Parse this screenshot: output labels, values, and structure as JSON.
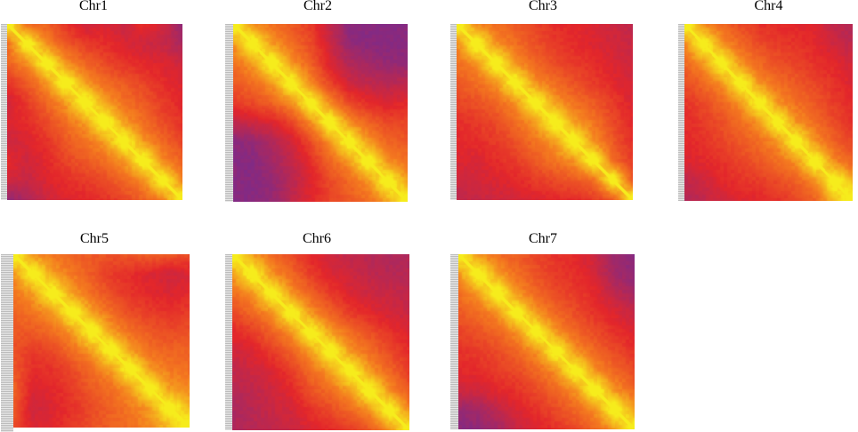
{
  "palette": {
    "low": "#7a2a8c",
    "mid_low": "#e3262b",
    "mid": "#f47a1f",
    "high": "#f6ec1c"
  },
  "chart_data": [
    {
      "type": "heatmap",
      "title": "Chr1",
      "matrix": [
        [
          1.0,
          0.62,
          0.58,
          0.42,
          0.3,
          0.35,
          0.28,
          0.4,
          0.32,
          0.1
        ],
        [
          0.62,
          1.0,
          0.7,
          0.55,
          0.45,
          0.4,
          0.35,
          0.3,
          0.28,
          0.18
        ],
        [
          0.58,
          0.7,
          1.0,
          0.72,
          0.6,
          0.5,
          0.42,
          0.38,
          0.35,
          0.3
        ],
        [
          0.42,
          0.55,
          0.72,
          1.0,
          0.74,
          0.62,
          0.55,
          0.48,
          0.4,
          0.35
        ],
        [
          0.3,
          0.45,
          0.6,
          0.74,
          1.0,
          0.75,
          0.63,
          0.55,
          0.45,
          0.38
        ],
        [
          0.35,
          0.4,
          0.5,
          0.62,
          0.75,
          1.0,
          0.74,
          0.62,
          0.5,
          0.42
        ],
        [
          0.28,
          0.35,
          0.42,
          0.55,
          0.63,
          0.74,
          1.0,
          0.73,
          0.6,
          0.48
        ],
        [
          0.4,
          0.3,
          0.38,
          0.48,
          0.55,
          0.62,
          0.73,
          1.0,
          0.7,
          0.58
        ],
        [
          0.32,
          0.28,
          0.35,
          0.4,
          0.45,
          0.5,
          0.6,
          0.7,
          1.0,
          0.68
        ],
        [
          0.1,
          0.18,
          0.3,
          0.35,
          0.38,
          0.42,
          0.48,
          0.58,
          0.68,
          1.0
        ]
      ]
    },
    {
      "type": "heatmap",
      "title": "Chr2",
      "matrix": [
        [
          1.0,
          0.72,
          0.62,
          0.55,
          0.45,
          0.25,
          0.05,
          0.05,
          0.05,
          0.05
        ],
        [
          0.72,
          1.0,
          0.74,
          0.62,
          0.5,
          0.3,
          0.1,
          0.05,
          0.05,
          0.05
        ],
        [
          0.62,
          0.74,
          1.0,
          0.73,
          0.58,
          0.35,
          0.2,
          0.15,
          0.1,
          0.1
        ],
        [
          0.55,
          0.62,
          0.73,
          1.0,
          0.7,
          0.48,
          0.3,
          0.25,
          0.22,
          0.25
        ],
        [
          0.45,
          0.5,
          0.58,
          0.7,
          1.0,
          0.7,
          0.5,
          0.4,
          0.35,
          0.38
        ],
        [
          0.25,
          0.3,
          0.35,
          0.48,
          0.7,
          1.0,
          0.72,
          0.58,
          0.5,
          0.48
        ],
        [
          0.05,
          0.1,
          0.2,
          0.3,
          0.5,
          0.72,
          1.0,
          0.73,
          0.6,
          0.55
        ],
        [
          0.05,
          0.05,
          0.15,
          0.25,
          0.4,
          0.58,
          0.73,
          1.0,
          0.72,
          0.62
        ],
        [
          0.05,
          0.05,
          0.1,
          0.22,
          0.35,
          0.5,
          0.6,
          0.72,
          1.0,
          0.75
        ],
        [
          0.05,
          0.05,
          0.1,
          0.25,
          0.38,
          0.48,
          0.55,
          0.62,
          0.75,
          1.0
        ]
      ]
    },
    {
      "type": "heatmap",
      "title": "Chr3",
      "matrix": [
        [
          1.0,
          0.7,
          0.62,
          0.55,
          0.48,
          0.4,
          0.38,
          0.35,
          0.3,
          0.25
        ],
        [
          0.7,
          1.0,
          0.72,
          0.62,
          0.52,
          0.45,
          0.4,
          0.35,
          0.32,
          0.28
        ],
        [
          0.62,
          0.72,
          1.0,
          0.72,
          0.6,
          0.5,
          0.45,
          0.4,
          0.35,
          0.3
        ],
        [
          0.55,
          0.62,
          0.72,
          1.0,
          0.72,
          0.62,
          0.52,
          0.45,
          0.38,
          0.32
        ],
        [
          0.48,
          0.52,
          0.6,
          0.72,
          1.0,
          0.74,
          0.64,
          0.55,
          0.45,
          0.35
        ],
        [
          0.4,
          0.45,
          0.5,
          0.62,
          0.74,
          1.0,
          0.74,
          0.64,
          0.5,
          0.38
        ],
        [
          0.38,
          0.4,
          0.45,
          0.52,
          0.64,
          0.74,
          1.0,
          0.72,
          0.55,
          0.4
        ],
        [
          0.35,
          0.35,
          0.4,
          0.45,
          0.55,
          0.64,
          0.72,
          1.0,
          0.62,
          0.45
        ],
        [
          0.3,
          0.32,
          0.35,
          0.38,
          0.45,
          0.5,
          0.55,
          0.62,
          1.0,
          0.55
        ],
        [
          0.25,
          0.28,
          0.3,
          0.32,
          0.35,
          0.38,
          0.4,
          0.45,
          0.55,
          1.0
        ]
      ]
    },
    {
      "type": "heatmap",
      "title": "Chr4",
      "matrix": [
        [
          1.0,
          0.7,
          0.6,
          0.5,
          0.42,
          0.4,
          0.38,
          0.35,
          0.25,
          0.2
        ],
        [
          0.7,
          1.0,
          0.72,
          0.6,
          0.5,
          0.45,
          0.42,
          0.38,
          0.3,
          0.25
        ],
        [
          0.6,
          0.72,
          1.0,
          0.72,
          0.6,
          0.52,
          0.48,
          0.42,
          0.38,
          0.32
        ],
        [
          0.5,
          0.6,
          0.72,
          1.0,
          0.72,
          0.62,
          0.55,
          0.48,
          0.42,
          0.35
        ],
        [
          0.42,
          0.5,
          0.6,
          0.72,
          1.0,
          0.72,
          0.62,
          0.55,
          0.45,
          0.38
        ],
        [
          0.4,
          0.45,
          0.52,
          0.62,
          0.72,
          1.0,
          0.72,
          0.62,
          0.5,
          0.42
        ],
        [
          0.38,
          0.42,
          0.48,
          0.55,
          0.62,
          0.72,
          1.0,
          0.72,
          0.58,
          0.48
        ],
        [
          0.35,
          0.38,
          0.42,
          0.48,
          0.55,
          0.62,
          0.72,
          1.0,
          0.7,
          0.58
        ],
        [
          0.25,
          0.3,
          0.38,
          0.42,
          0.45,
          0.5,
          0.58,
          0.7,
          1.0,
          0.8
        ],
        [
          0.2,
          0.25,
          0.32,
          0.35,
          0.38,
          0.42,
          0.48,
          0.58,
          0.8,
          1.0
        ]
      ]
    },
    {
      "type": "heatmap",
      "title": "Chr5",
      "matrix": [
        [
          1.0,
          0.72,
          0.65,
          0.58,
          0.55,
          0.52,
          0.55,
          0.58,
          0.55,
          0.5
        ],
        [
          0.72,
          1.0,
          0.74,
          0.65,
          0.55,
          0.45,
          0.4,
          0.35,
          0.3,
          0.35
        ],
        [
          0.65,
          0.74,
          1.0,
          0.74,
          0.62,
          0.5,
          0.42,
          0.38,
          0.35,
          0.38
        ],
        [
          0.58,
          0.65,
          0.74,
          1.0,
          0.74,
          0.62,
          0.5,
          0.45,
          0.42,
          0.45
        ],
        [
          0.55,
          0.55,
          0.62,
          0.74,
          1.0,
          0.74,
          0.62,
          0.55,
          0.5,
          0.52
        ],
        [
          0.52,
          0.45,
          0.5,
          0.62,
          0.74,
          1.0,
          0.74,
          0.62,
          0.58,
          0.58
        ],
        [
          0.55,
          0.4,
          0.42,
          0.5,
          0.62,
          0.74,
          1.0,
          0.74,
          0.65,
          0.62
        ],
        [
          0.58,
          0.35,
          0.38,
          0.45,
          0.55,
          0.62,
          0.74,
          1.0,
          0.74,
          0.7
        ],
        [
          0.55,
          0.3,
          0.35,
          0.42,
          0.5,
          0.58,
          0.65,
          0.74,
          1.0,
          0.8
        ],
        [
          0.5,
          0.35,
          0.38,
          0.45,
          0.52,
          0.58,
          0.62,
          0.7,
          0.8,
          1.0
        ]
      ]
    },
    {
      "type": "heatmap",
      "title": "Chr6",
      "matrix": [
        [
          1.0,
          0.74,
          0.62,
          0.5,
          0.38,
          0.3,
          0.25,
          0.22,
          0.18,
          0.2
        ],
        [
          0.74,
          1.0,
          0.72,
          0.6,
          0.45,
          0.35,
          0.3,
          0.25,
          0.22,
          0.22
        ],
        [
          0.62,
          0.72,
          1.0,
          0.72,
          0.58,
          0.45,
          0.35,
          0.3,
          0.28,
          0.25
        ],
        [
          0.5,
          0.6,
          0.72,
          1.0,
          0.72,
          0.58,
          0.45,
          0.38,
          0.32,
          0.28
        ],
        [
          0.38,
          0.45,
          0.58,
          0.72,
          1.0,
          0.74,
          0.62,
          0.52,
          0.42,
          0.35
        ],
        [
          0.3,
          0.35,
          0.45,
          0.58,
          0.74,
          1.0,
          0.74,
          0.62,
          0.5,
          0.4
        ],
        [
          0.25,
          0.3,
          0.35,
          0.45,
          0.62,
          0.74,
          1.0,
          0.74,
          0.6,
          0.45
        ],
        [
          0.22,
          0.25,
          0.3,
          0.38,
          0.52,
          0.62,
          0.74,
          1.0,
          0.72,
          0.55
        ],
        [
          0.18,
          0.22,
          0.28,
          0.32,
          0.42,
          0.5,
          0.6,
          0.72,
          1.0,
          0.7
        ],
        [
          0.2,
          0.22,
          0.25,
          0.28,
          0.35,
          0.4,
          0.45,
          0.55,
          0.7,
          1.0
        ]
      ]
    },
    {
      "type": "heatmap",
      "title": "Chr7",
      "matrix": [
        [
          1.0,
          0.72,
          0.62,
          0.55,
          0.48,
          0.42,
          0.38,
          0.3,
          0.12,
          0.05
        ],
        [
          0.72,
          1.0,
          0.74,
          0.62,
          0.52,
          0.45,
          0.4,
          0.32,
          0.15,
          0.08
        ],
        [
          0.62,
          0.74,
          1.0,
          0.72,
          0.6,
          0.5,
          0.45,
          0.38,
          0.25,
          0.15
        ],
        [
          0.55,
          0.62,
          0.72,
          1.0,
          0.72,
          0.6,
          0.5,
          0.42,
          0.35,
          0.28
        ],
        [
          0.48,
          0.52,
          0.6,
          0.72,
          1.0,
          0.72,
          0.6,
          0.5,
          0.42,
          0.35
        ],
        [
          0.42,
          0.45,
          0.5,
          0.6,
          0.72,
          1.0,
          0.72,
          0.6,
          0.5,
          0.42
        ],
        [
          0.38,
          0.4,
          0.45,
          0.5,
          0.6,
          0.72,
          1.0,
          0.72,
          0.6,
          0.5
        ],
        [
          0.3,
          0.32,
          0.38,
          0.42,
          0.5,
          0.6,
          0.72,
          1.0,
          0.72,
          0.6
        ],
        [
          0.12,
          0.15,
          0.25,
          0.35,
          0.42,
          0.5,
          0.6,
          0.72,
          1.0,
          0.74
        ],
        [
          0.05,
          0.08,
          0.15,
          0.28,
          0.35,
          0.42,
          0.5,
          0.6,
          0.74,
          1.0
        ]
      ]
    }
  ]
}
